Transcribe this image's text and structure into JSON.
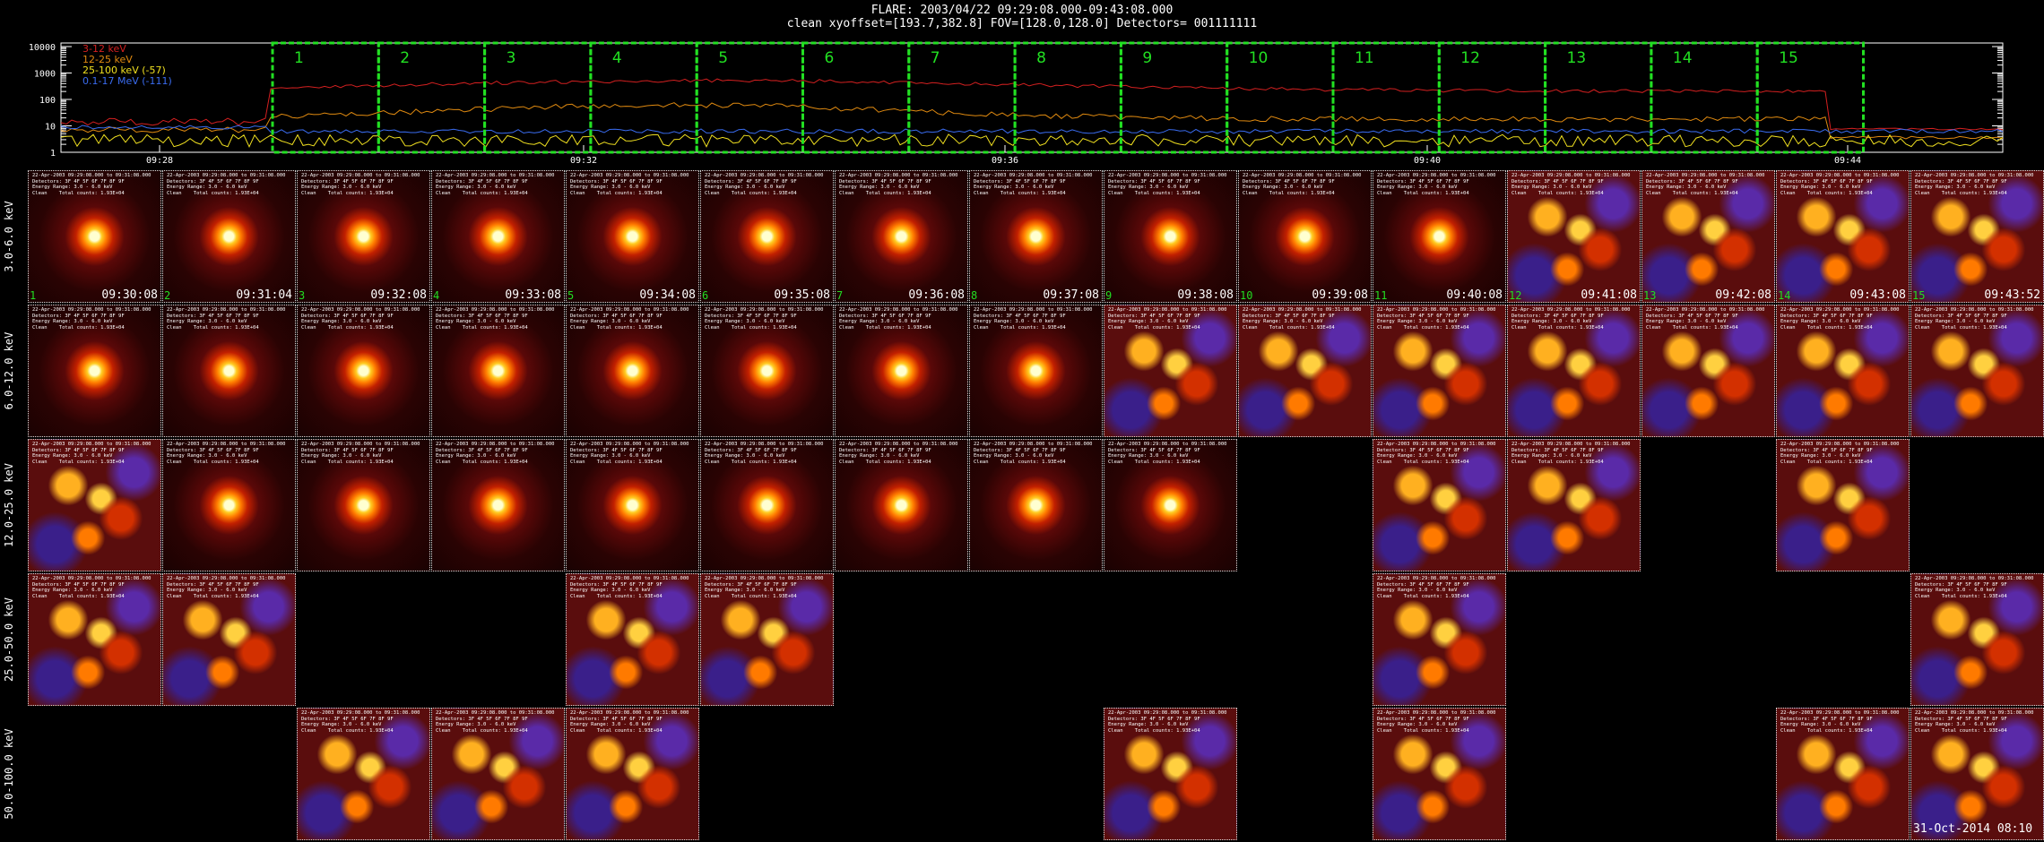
{
  "header": {
    "line1": "FLARE: 2003/04/22 09:29:08.000-09:43:08.000",
    "line2": "clean    xyoffset=[193.7,382.8]    FOV=[128.0,128.0]    Detectors= 001111111"
  },
  "lightcurve": {
    "yticks": [
      "10000",
      "1000",
      "100",
      "10",
      "1"
    ],
    "legend": [
      {
        "label": "3-12 keV",
        "color": "#d42020"
      },
      {
        "label": "12-25 keV",
        "color": "#e08a10"
      },
      {
        "label": "25-100 keV (-57)",
        "color": "#f0e020"
      },
      {
        "label": "0.1-17 MeV (-111)",
        "color": "#3a6cf0"
      }
    ],
    "xticks": [
      "09:28",
      "09:32",
      "09:36",
      "09:40",
      "09:44"
    ],
    "intervals": [
      "1",
      "2",
      "3",
      "4",
      "5",
      "6",
      "7",
      "8",
      "9",
      "10",
      "11",
      "12",
      "13",
      "14",
      "15"
    ],
    "interval_color": "#22e022"
  },
  "energy_bands": [
    "3.0-6.0 keV",
    "6.0-12.0 keV",
    "12.0-25.0 keV",
    "25.0-50.0 keV",
    "50.0-100.0 keV"
  ],
  "times": [
    "09:30:08",
    "09:31:04",
    "09:32:08",
    "09:33:08",
    "09:34:08",
    "09:35:08",
    "09:36:08",
    "09:37:08",
    "09:38:08",
    "09:39:08",
    "09:40:08",
    "09:41:08",
    "09:42:08",
    "09:43:08",
    "09:43:52"
  ],
  "grid_presence": [
    [
      1,
      1,
      1,
      1,
      1,
      1,
      1,
      1,
      1,
      1,
      1,
      1,
      1,
      1,
      1
    ],
    [
      1,
      1,
      1,
      1,
      1,
      1,
      1,
      1,
      1,
      1,
      1,
      1,
      1,
      1,
      1
    ],
    [
      1,
      1,
      1,
      1,
      1,
      1,
      1,
      1,
      1,
      0,
      1,
      1,
      0,
      1,
      0
    ],
    [
      1,
      1,
      0,
      0,
      1,
      1,
      0,
      0,
      0,
      0,
      1,
      0,
      0,
      0,
      1
    ],
    [
      0,
      0,
      1,
      1,
      1,
      0,
      0,
      0,
      1,
      0,
      1,
      0,
      0,
      1,
      1
    ]
  ],
  "image_annotation": "22-Apr-2003 09:29:08.000 to 09:31:08.000\nDetectors: 3F 4F 5F 6F 7F 8F 9F\nEnergy Range: 3.0 - 6.0 keV\nClean    Total counts: 1.93E+04",
  "stamp": "31-Oct-2014 08:10"
}
